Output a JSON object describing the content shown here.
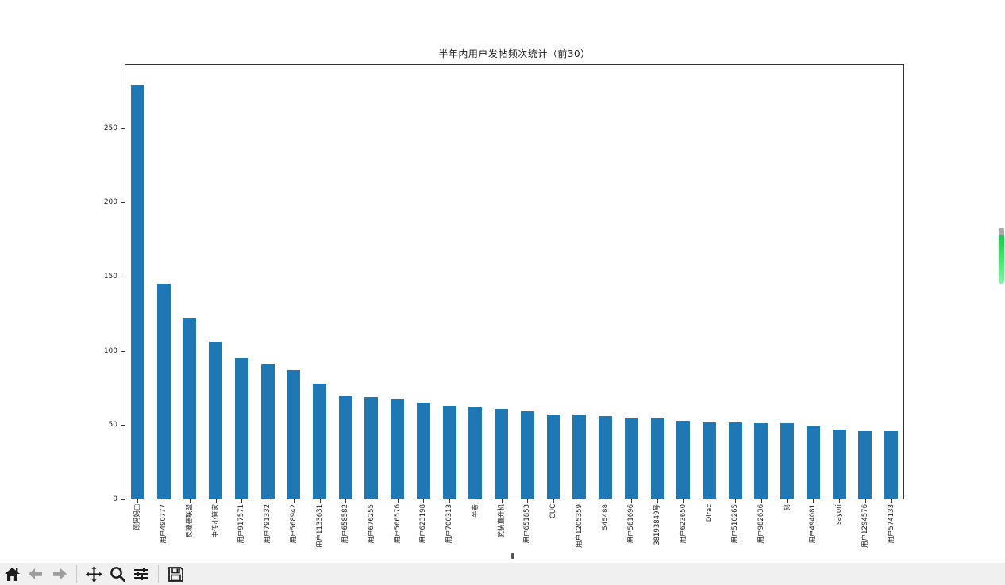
{
  "window": {
    "background": "#ffffff"
  },
  "chart_data": {
    "type": "bar",
    "title": "半年内用户发帖频次统计（前30）",
    "xlabel": "",
    "ylabel": "",
    "grid": false,
    "legend_position": "none",
    "bar_color": "#1f77b4",
    "axis_color": "#333333",
    "ylim": [
      0,
      293
    ],
    "yticks": [
      0,
      50,
      100,
      150,
      200,
      250
    ],
    "categories": [
      "顾妈妈□",
      "用户490777",
      "反糖德联盟",
      "中传小管家",
      "用户917571",
      "用户791332",
      "用户568942",
      "用户1133631",
      "用户658582",
      "用户676255",
      "用户566576",
      "用户623198",
      "用户700313",
      "半卷",
      "武装直升机",
      "用户651853",
      "CUC",
      "用户1205359",
      "545488",
      "用户561696",
      "38193849号",
      "用户623650",
      "Dirac",
      "用户510265",
      "用户982636",
      "鸫",
      "用户494081",
      "sayori",
      "用户1294576",
      "用户574133"
    ],
    "values": [
      279,
      145,
      122,
      106,
      95,
      91,
      87,
      78,
      70,
      69,
      68,
      65,
      63,
      62,
      61,
      59,
      57,
      57,
      56,
      55,
      55,
      53,
      52,
      52,
      51,
      51,
      49,
      47,
      46,
      46
    ]
  },
  "toolbar": {
    "background": "#f0f0f0",
    "buttons": [
      {
        "id": "home",
        "icon": "home-icon",
        "enabled": true
      },
      {
        "id": "back",
        "icon": "back-arrow-icon",
        "enabled": false
      },
      {
        "id": "forward",
        "icon": "forward-arrow-icon",
        "enabled": false
      },
      {
        "id": "pan",
        "icon": "pan-arrows-icon",
        "enabled": true
      },
      {
        "id": "zoom",
        "icon": "zoom-magnifier-icon",
        "enabled": true
      },
      {
        "id": "subplots",
        "icon": "sliders-icon",
        "enabled": true
      },
      {
        "id": "save",
        "icon": "save-floppy-icon",
        "enabled": true
      }
    ]
  },
  "scrollbar": {
    "thumb_cap_color": "#a9a9a9",
    "thumb_color": "#3ddc63"
  }
}
